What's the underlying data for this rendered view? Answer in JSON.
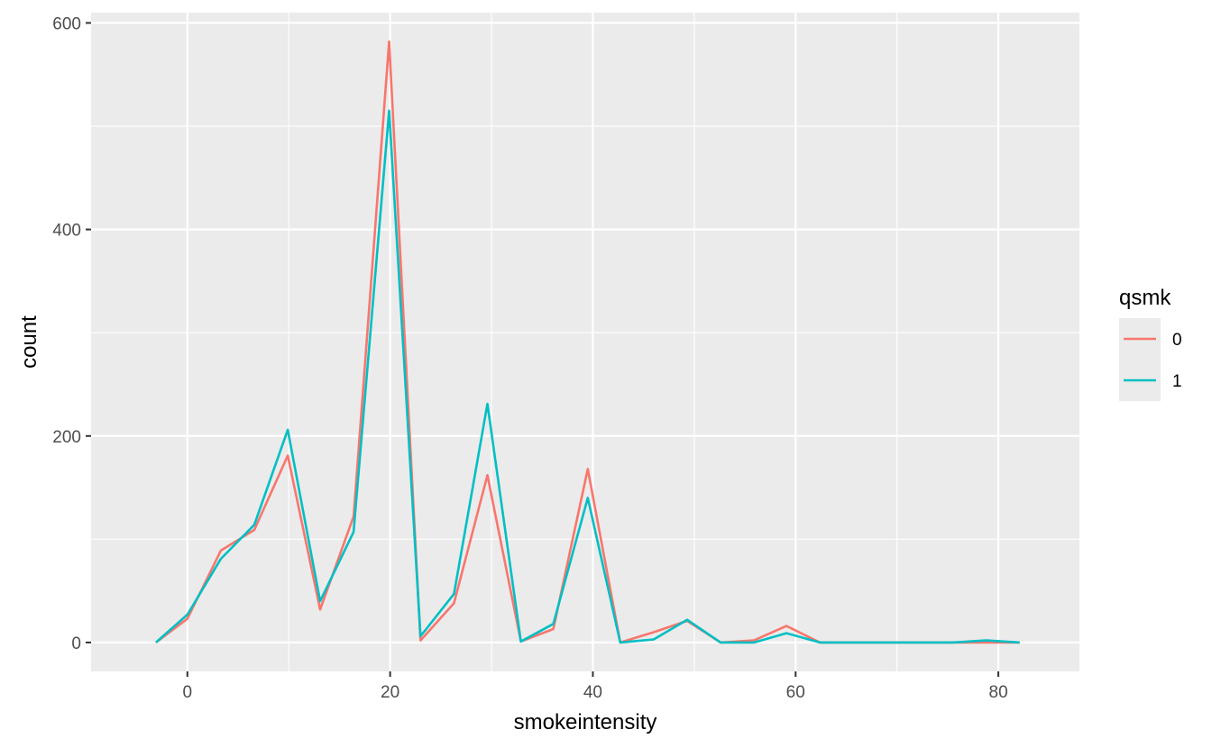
{
  "chart_data": {
    "type": "line",
    "title": "",
    "xlabel": "smokeintensity",
    "ylabel": "count",
    "xlim": [
      -9.5,
      88
    ],
    "ylim": [
      -28,
      610
    ],
    "x_ticks": [
      0,
      20,
      40,
      60,
      80
    ],
    "x_tick_labels": [
      "0",
      "20",
      "40",
      "60",
      "80"
    ],
    "x_minor_ticks": [
      10,
      30,
      50,
      70
    ],
    "y_ticks": [
      0,
      200,
      400,
      600
    ],
    "y_tick_labels": [
      "0",
      "200",
      "400",
      "600"
    ],
    "y_minor_ticks": [
      100,
      300,
      500
    ],
    "grid": true,
    "panel_background": "#ebebeb",
    "legend": {
      "title": "qsmk",
      "position": "right",
      "entries": [
        "0",
        "1"
      ]
    },
    "series": [
      {
        "name": "0",
        "color": "#F8766D",
        "x": [
          -3.1,
          0,
          3.3,
          6.6,
          9.9,
          13.1,
          16.4,
          19.9,
          23.0,
          26.3,
          29.6,
          32.9,
          36.1,
          39.5,
          42.7,
          46.0,
          49.3,
          52.6,
          55.9,
          59.1,
          62.4,
          65.7,
          69.0,
          72.3,
          75.5,
          78.8,
          82.1
        ],
        "values": [
          0,
          23,
          89,
          109,
          181,
          32,
          122,
          582,
          2,
          38,
          162,
          1,
          13,
          168,
          0,
          10,
          21,
          0,
          2,
          16,
          0,
          0,
          0,
          0,
          0,
          0,
          0
        ]
      },
      {
        "name": "1",
        "color": "#00BFC4",
        "x": [
          -3.1,
          0,
          3.3,
          6.6,
          9.9,
          13.1,
          16.4,
          19.9,
          23.0,
          26.3,
          29.6,
          32.9,
          36.1,
          39.5,
          42.7,
          46.0,
          49.3,
          52.6,
          55.9,
          59.1,
          62.4,
          65.7,
          69.0,
          72.3,
          75.5,
          78.8,
          82.1
        ],
        "values": [
          0,
          27,
          81,
          114,
          206,
          40,
          107,
          515,
          6,
          47,
          231,
          1,
          18,
          140,
          0,
          3,
          22,
          0,
          0,
          9,
          0,
          0,
          0,
          0,
          0,
          2,
          0
        ]
      }
    ]
  }
}
